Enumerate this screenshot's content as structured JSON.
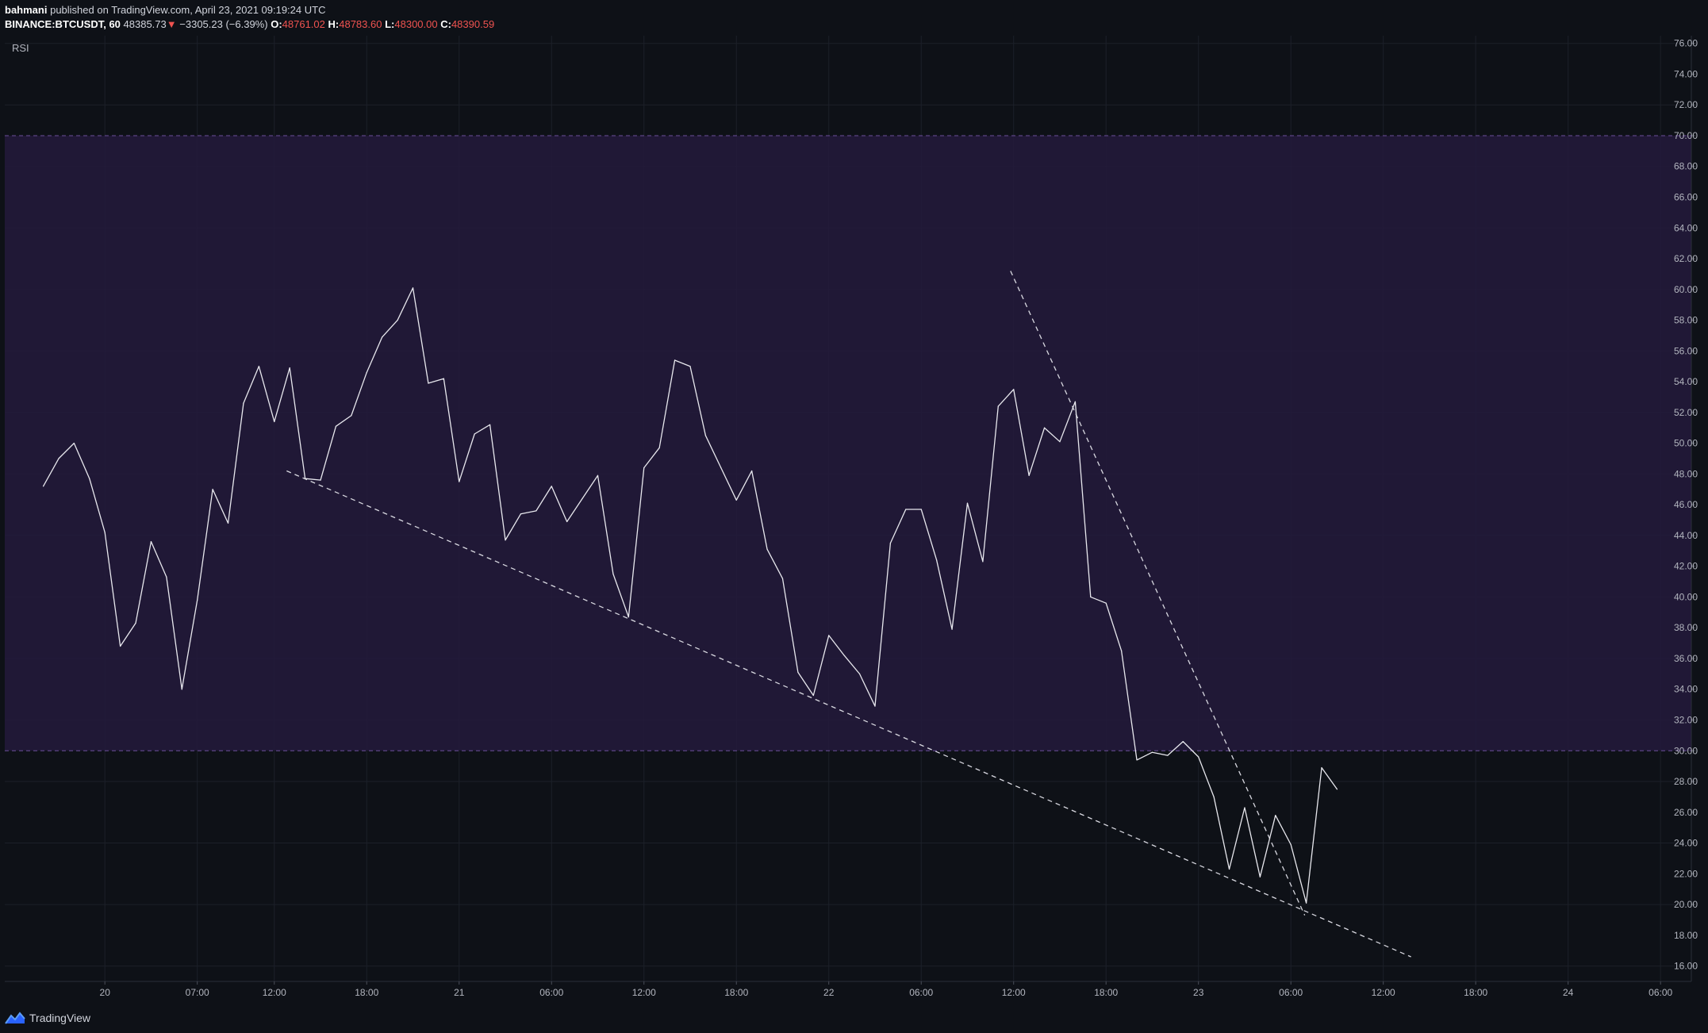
{
  "header": {
    "author": "bahmani",
    "published_text": "published on TradingView.com, April 23, 2021 09:19:24 UTC",
    "symbol": "BINANCE:BTCUSDT, 60",
    "last_price": "48385.73",
    "change_arrow": "▼",
    "change_text": "−3305.23 (−6.39%)",
    "open_label": "O:",
    "open_value": "48761.02",
    "high_label": "H:",
    "high_value": "48783.60",
    "low_label": "L:",
    "low_value": "48300.00",
    "close_label": "C:",
    "close_value": "48390.59"
  },
  "footer": {
    "brand": "TradingView",
    "logo_icon": "tradingview-logo-icon"
  },
  "colors": {
    "background": "#0e1117",
    "band_fill": "#231a3c",
    "band_line": "#6b4f9a",
    "grid": "#1c2029",
    "rsi_line": "#e8e8ee",
    "trendline": "#d8d8e0",
    "axis_text": "#b2b5be",
    "down": "#ef5350"
  },
  "chart_data": {
    "type": "line",
    "title": "RSI",
    "ylim": [
      15,
      76.5
    ],
    "yticks": [
      16,
      18,
      20,
      22,
      24,
      26,
      28,
      30,
      32,
      34,
      36,
      38,
      40,
      42,
      44,
      46,
      48,
      50,
      52,
      54,
      56,
      58,
      60,
      62,
      64,
      66,
      68,
      70,
      72,
      74,
      76
    ],
    "ytick_labels": [
      "16.00",
      "18.00",
      "20.00",
      "22.00",
      "24.00",
      "26.00",
      "28.00",
      "30.00",
      "32.00",
      "34.00",
      "36.00",
      "38.00",
      "40.00",
      "42.00",
      "44.00",
      "46.00",
      "48.00",
      "50.00",
      "52.00",
      "54.00",
      "56.00",
      "58.00",
      "60.00",
      "62.00",
      "64.00",
      "66.00",
      "68.00",
      "70.00",
      "72.00",
      "74.00",
      "76.00"
    ],
    "xlim": [
      -2.5,
      107
    ],
    "xticks": [
      {
        "x": 4,
        "label": "20"
      },
      {
        "x": 10,
        "label": "07:00"
      },
      {
        "x": 15,
        "label": "12:00"
      },
      {
        "x": 21,
        "label": "18:00"
      },
      {
        "x": 27,
        "label": "21"
      },
      {
        "x": 33,
        "label": "06:00"
      },
      {
        "x": 39,
        "label": "12:00"
      },
      {
        "x": 45,
        "label": "18:00"
      },
      {
        "x": 51,
        "label": "22"
      },
      {
        "x": 57,
        "label": "06:00"
      },
      {
        "x": 63,
        "label": "12:00"
      },
      {
        "x": 69,
        "label": "18:00"
      },
      {
        "x": 75,
        "label": "23"
      },
      {
        "x": 81,
        "label": "06:00"
      },
      {
        "x": 87,
        "label": "12:00"
      },
      {
        "x": 93,
        "label": "18:00"
      },
      {
        "x": 99,
        "label": "24"
      },
      {
        "x": 105,
        "label": "06:00"
      }
    ],
    "overbought": 70,
    "oversold": 30,
    "grid": true,
    "series": [
      {
        "values": [
          47.2,
          49.0,
          50.0,
          47.7,
          44.2,
          36.8,
          38.3,
          43.6,
          41.3,
          34.0,
          39.8,
          47.0,
          44.8,
          52.6,
          55.0,
          51.4,
          54.9,
          47.7,
          47.6,
          51.1,
          51.8,
          54.6,
          56.9,
          58.0,
          60.1,
          53.9,
          54.2,
          47.5,
          50.6,
          51.2,
          43.7,
          45.4,
          45.6,
          47.2,
          44.9,
          46.4,
          47.9,
          41.5,
          38.7,
          48.4,
          49.7,
          55.4,
          55.0,
          50.5,
          48.4,
          46.3,
          48.2,
          43.1,
          41.2,
          35.1,
          33.6,
          37.5,
          36.2,
          35.0,
          32.9,
          43.5,
          45.7,
          45.7,
          42.4,
          37.9,
          46.1,
          42.3,
          52.4,
          53.5,
          47.9,
          51.0,
          50.1,
          52.7,
          40.0,
          39.6,
          36.5,
          29.4,
          29.9,
          29.7,
          30.6,
          29.6,
          27.0,
          22.3,
          26.3,
          21.8,
          25.8,
          23.9,
          20.1,
          28.9,
          27.5
        ]
      }
    ],
    "trendlines": [
      {
        "x1": 15.8,
        "y1": 48.2,
        "x2": 88.8,
        "y2": 16.6
      },
      {
        "x1": 62.8,
        "y1": 61.2,
        "x2": 81.9,
        "y2": 19.3
      }
    ]
  }
}
